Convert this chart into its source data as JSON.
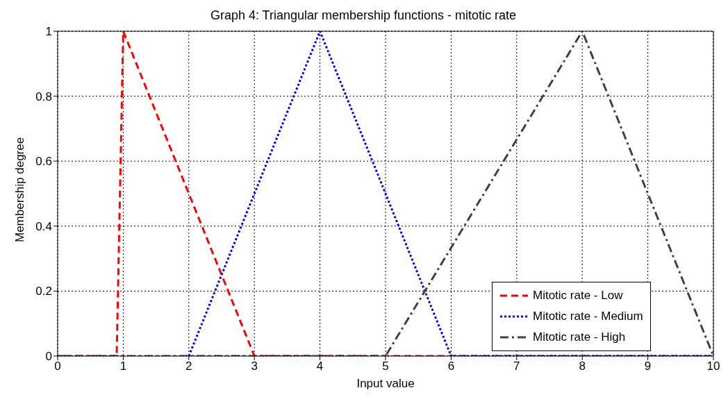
{
  "chart_data": {
    "type": "line",
    "title": "Graph 4: Triangular membership functions - mitotic rate",
    "xlabel": "Input value",
    "ylabel": "Membership degree",
    "series": [
      {
        "name": "Mitotic rate - Low",
        "color": "#ff0000",
        "line_style": "dashed",
        "x": [
          0.1,
          0.9,
          1,
          3,
          10
        ],
        "values": [
          0,
          0,
          1,
          0,
          0
        ]
      },
      {
        "name": "Mitotic rate - Medium",
        "color": "#0000ff",
        "line_style": "dotted",
        "x": [
          2,
          4,
          6,
          10
        ],
        "values": [
          0,
          1,
          0,
          0
        ]
      },
      {
        "name": "Mitotic rate - High",
        "color": "#404040",
        "line_style": "dashdot",
        "x": [
          0,
          5,
          8,
          10
        ],
        "values": [
          0,
          0,
          1,
          0
        ]
      }
    ],
    "xlim": [
      0,
      10
    ],
    "xticks": [
      0,
      1,
      2,
      3,
      4,
      5,
      6,
      7,
      8,
      9,
      10
    ],
    "ylim": [
      0,
      1
    ],
    "yticks": [
      0,
      0.2,
      0.4,
      0.6,
      0.8,
      1
    ],
    "grid": true,
    "legend": "bottom right",
    "marker": "none"
  }
}
